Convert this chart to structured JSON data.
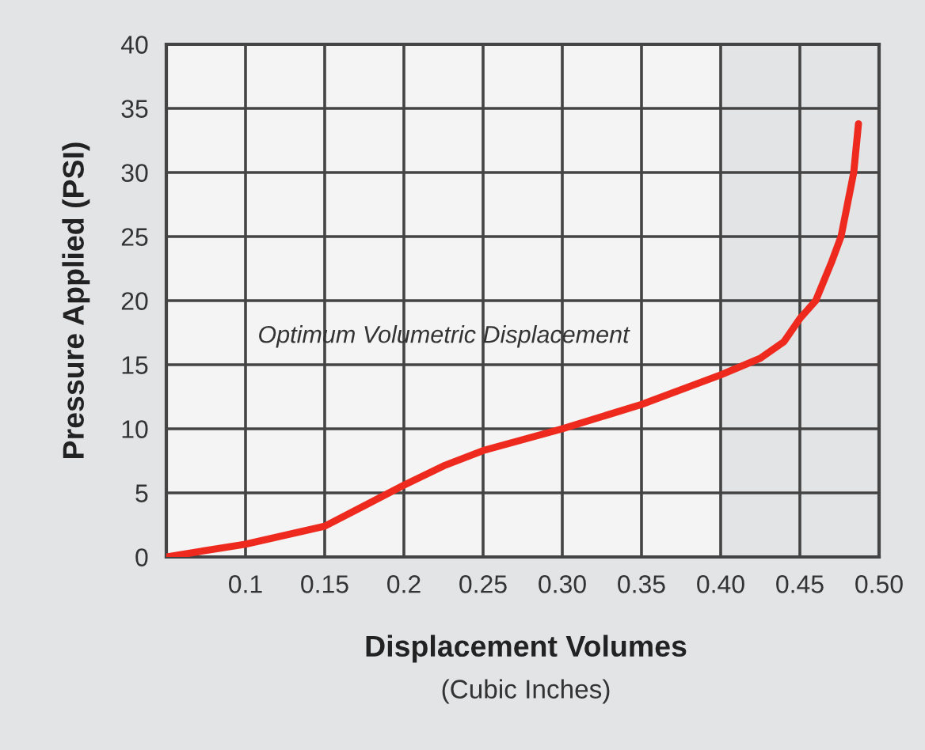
{
  "chart_data": {
    "type": "line",
    "xlabel": "Displacement Volumes\n(Cubic Inches)",
    "ylabel": "Pressure Applied (PSI)",
    "x": [
      0.05,
      0.1,
      0.15,
      0.175,
      0.2,
      0.225,
      0.25,
      0.3,
      0.35,
      0.4,
      0.425,
      0.44,
      0.45,
      0.46,
      0.47,
      0.476,
      0.484,
      0.487
    ],
    "series": [
      {
        "color": "#ee2a1e",
        "values": [
          0,
          1.0,
          2.4,
          4.0,
          5.6,
          7.1,
          8.3,
          10.0,
          11.9,
          14.2,
          15.5,
          16.8,
          18.6,
          20,
          23,
          25,
          30,
          33.8
        ]
      }
    ],
    "xlim": [
      0.05,
      0.5
    ],
    "ylim": [
      0,
      40
    ],
    "xticks": [
      0.1,
      0.15,
      0.2,
      0.25,
      {
        "value": 0.3,
        "label": "0.30"
      },
      0.35,
      {
        "value": 0.4,
        "label": "0.40"
      },
      0.45,
      {
        "value": 0.5,
        "label": "0.50"
      }
    ],
    "yticks": [
      0,
      5,
      10,
      15,
      20,
      25,
      30,
      35,
      40
    ],
    "bands": [
      {
        "axis": "x",
        "from": 0.05,
        "to": 0.4,
        "label": "Optimum Volumetric Displacement",
        "color": "#f4f4f4"
      }
    ],
    "grid": true,
    "marker": "none",
    "line_style": "solid",
    "legend": false
  }
}
